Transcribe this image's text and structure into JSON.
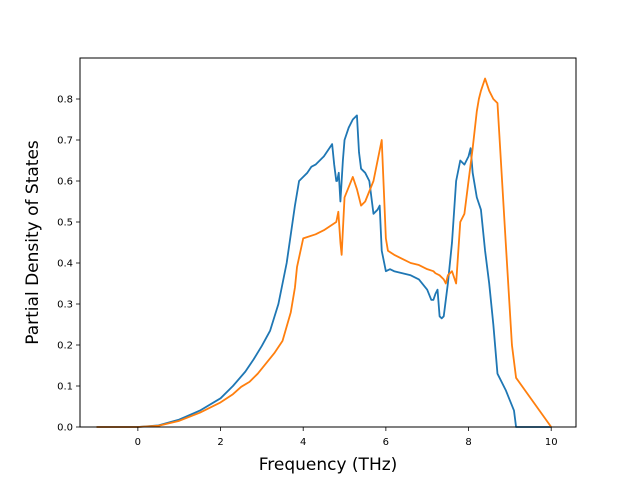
{
  "chart_data": {
    "type": "line",
    "title": "",
    "xlabel": "Frequency (THz)",
    "ylabel": "Partial Density of States",
    "xlim": [
      -1.4,
      10.6
    ],
    "ylim": [
      0.0,
      0.9
    ],
    "xticks": [
      "0",
      "2",
      "4",
      "6",
      "8",
      "10"
    ],
    "yticks": [
      "0.0",
      "0.1",
      "0.2",
      "0.3",
      "0.4",
      "0.5",
      "0.6",
      "0.7",
      "0.8"
    ],
    "grid": false,
    "legend": "none",
    "series": [
      {
        "color": "#1f77b4",
        "x": [
          -1.0,
          0.0,
          0.5,
          1.0,
          1.5,
          2.0,
          2.3,
          2.6,
          2.8,
          3.0,
          3.2,
          3.4,
          3.6,
          3.8,
          3.9,
          4.0,
          4.1,
          4.2,
          4.3,
          4.5,
          4.7,
          4.72,
          4.75,
          4.8,
          4.82,
          4.86,
          4.9,
          4.93,
          4.96,
          5.0,
          5.1,
          5.2,
          5.3,
          5.35,
          5.4,
          5.5,
          5.6,
          5.7,
          5.8,
          5.85,
          5.9,
          6.0,
          6.1,
          6.2,
          6.4,
          6.6,
          6.8,
          7.0,
          7.1,
          7.15,
          7.2,
          7.25,
          7.3,
          7.35,
          7.4,
          7.5,
          7.6,
          7.7,
          7.8,
          7.9,
          8.0,
          8.05,
          8.1,
          8.2,
          8.3,
          8.4,
          8.5,
          8.6,
          8.7,
          8.9,
          9.1,
          9.15,
          10.0
        ],
        "values": [
          0.0,
          0.0,
          0.004,
          0.018,
          0.04,
          0.07,
          0.1,
          0.135,
          0.165,
          0.198,
          0.235,
          0.3,
          0.4,
          0.54,
          0.6,
          0.61,
          0.62,
          0.635,
          0.64,
          0.66,
          0.69,
          0.67,
          0.64,
          0.6,
          0.6,
          0.62,
          0.55,
          0.6,
          0.65,
          0.7,
          0.73,
          0.75,
          0.76,
          0.67,
          0.63,
          0.62,
          0.6,
          0.52,
          0.53,
          0.54,
          0.43,
          0.38,
          0.385,
          0.38,
          0.375,
          0.37,
          0.36,
          0.335,
          0.31,
          0.31,
          0.325,
          0.335,
          0.27,
          0.265,
          0.27,
          0.35,
          0.45,
          0.6,
          0.65,
          0.64,
          0.66,
          0.68,
          0.62,
          0.56,
          0.53,
          0.43,
          0.35,
          0.25,
          0.13,
          0.09,
          0.04,
          0.0,
          0.0
        ]
      },
      {
        "color": "#ff7f0e",
        "x": [
          -1.0,
          0.0,
          0.5,
          1.0,
          1.5,
          2.0,
          2.3,
          2.5,
          2.7,
          2.9,
          3.1,
          3.3,
          3.5,
          3.7,
          3.8,
          3.85,
          4.0,
          4.3,
          4.5,
          4.8,
          4.85,
          4.9,
          4.93,
          5.0,
          5.2,
          5.3,
          5.4,
          5.5,
          5.7,
          5.9,
          6.0,
          6.05,
          6.2,
          6.4,
          6.6,
          6.8,
          7.0,
          7.15,
          7.2,
          7.3,
          7.4,
          7.45,
          7.5,
          7.6,
          7.7,
          7.8,
          7.9,
          8.0,
          8.1,
          8.2,
          8.25,
          8.3,
          8.4,
          8.5,
          8.6,
          8.7,
          8.9,
          9.05,
          9.15,
          10.0
        ],
        "values": [
          0.0,
          0.0,
          0.003,
          0.015,
          0.035,
          0.06,
          0.08,
          0.098,
          0.11,
          0.13,
          0.155,
          0.18,
          0.21,
          0.28,
          0.34,
          0.39,
          0.46,
          0.47,
          0.48,
          0.5,
          0.525,
          0.45,
          0.42,
          0.56,
          0.61,
          0.58,
          0.54,
          0.55,
          0.6,
          0.7,
          0.46,
          0.43,
          0.42,
          0.41,
          0.4,
          0.395,
          0.385,
          0.38,
          0.375,
          0.37,
          0.36,
          0.35,
          0.37,
          0.38,
          0.35,
          0.5,
          0.52,
          0.6,
          0.68,
          0.77,
          0.8,
          0.82,
          0.85,
          0.82,
          0.8,
          0.79,
          0.45,
          0.2,
          0.12,
          0.0
        ]
      }
    ]
  }
}
